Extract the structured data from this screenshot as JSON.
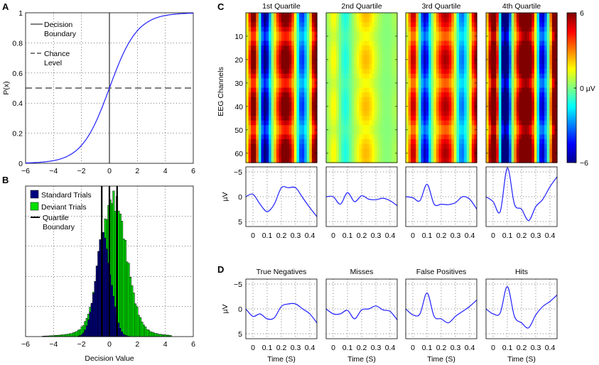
{
  "panels": {
    "a": {
      "letter": "A"
    },
    "b": {
      "letter": "B"
    },
    "c": {
      "letter": "C"
    },
    "d": {
      "letter": "D"
    }
  },
  "colorbar": {
    "ticks": [
      "6",
      "0 µV",
      "−6"
    ],
    "colors": [
      "#00008f",
      "#0000ff",
      "#0080ff",
      "#00ffff",
      "#80ff80",
      "#ffff00",
      "#ff8000",
      "#ff0000",
      "#800000"
    ]
  },
  "chart_data": [
    {
      "id": "A",
      "type": "line",
      "title": "",
      "xlabel": "",
      "ylabel": "P(x)",
      "xlim": [
        -6,
        6
      ],
      "ylim": [
        0,
        1
      ],
      "xticks": [
        "−6",
        "−4",
        "−2",
        "0",
        "2",
        "4",
        "6"
      ],
      "yticks": [
        "0",
        "0.2",
        "0.4",
        "0.6",
        "0.8",
        "1"
      ],
      "grid": true,
      "series": [
        {
          "name": "Sigmoid",
          "color": "#2020ff",
          "function": "1/(1+exp(-x))"
        },
        {
          "name": "Decision Boundary",
          "x": [
            0,
            0
          ],
          "y": [
            0,
            1
          ],
          "style": "solid"
        },
        {
          "name": "Chance Level",
          "x": [
            -6,
            6
          ],
          "y": [
            0.5,
            0.5
          ],
          "style": "dashed"
        }
      ],
      "legend": [
        "Decision Boundary",
        "Chance Level"
      ],
      "legend_lines": [
        [
          "Decision",
          "Boundary"
        ],
        [
          "Chance",
          "Level"
        ]
      ],
      "legend_position": "top-left"
    },
    {
      "id": "B",
      "type": "bar",
      "xlabel": "Decision Value",
      "ylabel": "",
      "xlim": [
        -6,
        6
      ],
      "xticks": [
        "−6",
        "−4",
        "−2",
        "0",
        "2",
        "4",
        "6"
      ],
      "grid": true,
      "series": [
        {
          "name": "Standard Trials",
          "color": "#000080",
          "center": -0.45,
          "spread": 0.55
        },
        {
          "name": "Deviant Trials",
          "color": "#00e000",
          "center": 0.3,
          "spread": 0.9
        }
      ],
      "quartile_boundaries": [
        -0.55,
        0.0,
        0.55
      ],
      "legend": [
        "Standard Trials",
        "Deviant Trials",
        "Quartile Boundary"
      ],
      "legend_lines": [
        [
          "Standard Trials"
        ],
        [
          "Deviant Trials"
        ],
        [
          "Quartile",
          "Boundary"
        ]
      ],
      "legend_position": "top-left"
    },
    {
      "id": "C-maps",
      "type": "heatmap",
      "titles": [
        "1st Quartile",
        "2nd Quartile",
        "3rd Quartile",
        "4th Quartile"
      ],
      "ylabel": "EEG Channels",
      "yticks": [
        "10",
        "20",
        "30",
        "40",
        "50",
        "60"
      ],
      "channels": 64,
      "time_range": [
        -0.05,
        0.45
      ],
      "color_range": [
        -6,
        6
      ],
      "strength": [
        0.75,
        0.35,
        0.6,
        1.0
      ]
    },
    {
      "id": "C-erp",
      "type": "line",
      "ylabel": "µV",
      "ylim": [
        -6,
        6
      ],
      "y_inverted": true,
      "yticks": [
        "−5",
        "0",
        "5"
      ],
      "xticks": [
        "0",
        "0.1",
        "0.2",
        "0.3",
        "0.4"
      ],
      "xlabel": "",
      "series": [
        {
          "name": "1st Quartile",
          "x": [
            -0.05,
            0.0,
            0.05,
            0.1,
            0.15,
            0.2,
            0.25,
            0.3,
            0.35,
            0.4,
            0.45
          ],
          "y": [
            0,
            -0.5,
            1.5,
            3.0,
            1.5,
            -1.8,
            -1.8,
            -1.8,
            0.2,
            2.2,
            4.0
          ]
        },
        {
          "name": "2nd Quartile",
          "x": [
            -0.05,
            0.0,
            0.05,
            0.1,
            0.15,
            0.2,
            0.25,
            0.3,
            0.35,
            0.4,
            0.45
          ],
          "y": [
            0,
            0,
            1.5,
            -0.8,
            1.0,
            -0.2,
            0.5,
            0.6,
            0.3,
            0.8,
            1.8
          ]
        },
        {
          "name": "3rd Quartile",
          "x": [
            -0.05,
            0.0,
            0.05,
            0.1,
            0.15,
            0.2,
            0.25,
            0.3,
            0.35,
            0.4,
            0.45
          ],
          "y": [
            0,
            0.2,
            0.8,
            -2.5,
            1.5,
            1.5,
            1.6,
            1.2,
            0.0,
            0.5,
            2.5
          ]
        },
        {
          "name": "4th Quartile",
          "x": [
            -0.05,
            0.0,
            0.05,
            0.1,
            0.15,
            0.2,
            0.25,
            0.3,
            0.35,
            0.4,
            0.45
          ],
          "y": [
            0,
            1.0,
            3.0,
            -5.8,
            1.5,
            2.5,
            4.8,
            2.0,
            0.5,
            -2.0,
            -4.0
          ]
        }
      ]
    },
    {
      "id": "D",
      "type": "line",
      "titles": [
        "True Negatives",
        "Misses",
        "False Positives",
        "Hits"
      ],
      "ylabel": "µV",
      "ylim": [
        -6,
        6
      ],
      "y_inverted": true,
      "yticks": [
        "−5",
        "0",
        "5"
      ],
      "xticks": [
        "0",
        "0.1",
        "0.2",
        "0.3",
        "0.4"
      ],
      "xlabel": "Time (S)",
      "series": [
        {
          "name": "True Negatives",
          "x": [
            -0.05,
            0.0,
            0.05,
            0.1,
            0.15,
            0.2,
            0.25,
            0.3,
            0.35,
            0.4,
            0.45
          ],
          "y": [
            0,
            1.5,
            1.0,
            2.0,
            1.8,
            -0.5,
            -1.0,
            -1.0,
            0.0,
            1.0,
            2.8
          ]
        },
        {
          "name": "Misses",
          "x": [
            -0.05,
            0.0,
            0.05,
            0.1,
            0.15,
            0.2,
            0.25,
            0.3,
            0.35,
            0.4,
            0.45
          ],
          "y": [
            0,
            1.0,
            1.0,
            0.3,
            2.0,
            0.2,
            0.0,
            -0.6,
            0.2,
            0.5,
            2.2
          ]
        },
        {
          "name": "False Positives",
          "x": [
            -0.05,
            0.0,
            0.05,
            0.1,
            0.15,
            0.2,
            0.25,
            0.3,
            0.35,
            0.4,
            0.45
          ],
          "y": [
            0,
            1.2,
            1.0,
            -3.2,
            1.5,
            2.0,
            2.8,
            1.5,
            0.5,
            -0.5,
            -1.8
          ]
        },
        {
          "name": "Hits",
          "x": [
            -0.05,
            0.0,
            0.05,
            0.1,
            0.15,
            0.2,
            0.25,
            0.3,
            0.35,
            0.4,
            0.45
          ],
          "y": [
            0,
            1.0,
            0.8,
            -4.5,
            1.5,
            2.8,
            3.8,
            1.2,
            -0.5,
            -1.5,
            -2.8
          ]
        }
      ]
    }
  ]
}
